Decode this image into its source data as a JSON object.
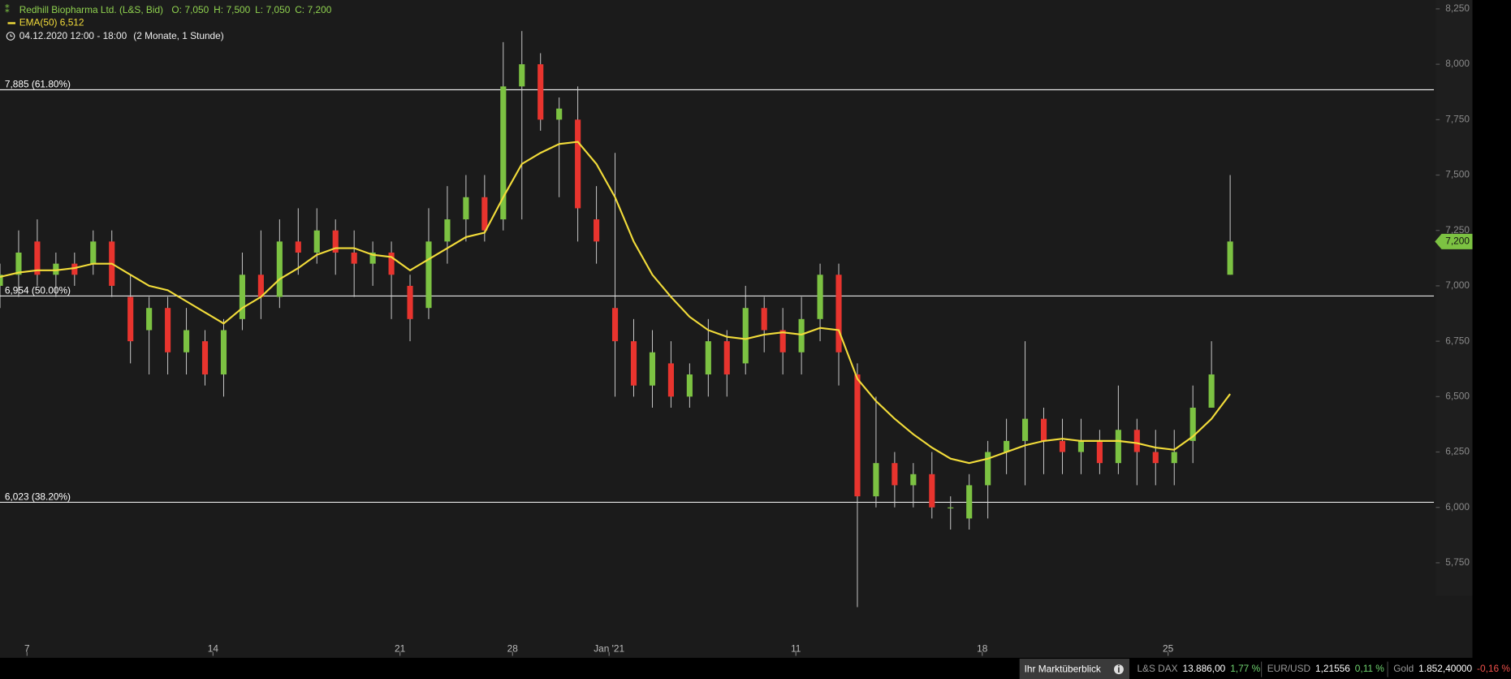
{
  "chart_data": {
    "type": "candlestick",
    "title": "Redhill Biopharma Ltd. (L&S, Bid)",
    "ohlc_legend": [
      {
        "label": "O:",
        "value": "7,050"
      },
      {
        "label": "H:",
        "value": "7,500"
      },
      {
        "label": "L:",
        "value": "7,050"
      },
      {
        "label": "C:",
        "value": "7,200"
      }
    ],
    "time_label": "04.12.2020 12:00 - 18:00",
    "period_label": "(2 Monate, 1 Stunde)",
    "up_color": "#7cc242",
    "down_color": "#e8342e",
    "x": [
      0,
      1,
      2,
      3,
      4,
      5,
      6,
      7,
      8,
      9,
      10,
      11,
      12,
      13,
      14,
      15,
      16,
      17,
      18,
      19,
      20,
      21,
      22,
      23,
      24,
      25,
      26,
      27,
      28,
      29,
      30,
      31,
      32,
      33,
      34,
      35,
      36,
      37,
      38,
      39,
      40,
      41,
      42,
      43,
      44,
      45,
      46,
      47,
      48,
      49,
      50,
      51,
      52,
      53,
      54,
      55,
      56,
      57,
      58,
      59,
      60,
      61,
      62,
      63,
      64,
      65,
      66
    ],
    "open": [
      7.0,
      7.05,
      7.2,
      7.05,
      7.1,
      7.1,
      7.2,
      6.95,
      6.8,
      6.9,
      6.7,
      6.75,
      6.6,
      6.85,
      7.05,
      6.95,
      7.2,
      7.15,
      7.25,
      7.15,
      7.1,
      7.15,
      7.0,
      6.9,
      7.2,
      7.3,
      7.4,
      7.3,
      7.9,
      8.0,
      7.75,
      7.75,
      7.3,
      6.9,
      6.75,
      6.55,
      6.65,
      6.5,
      6.6,
      6.75,
      6.65,
      6.9,
      6.8,
      6.7,
      6.85,
      7.05,
      6.6,
      6.05,
      6.2,
      6.1,
      6.15,
      6.0,
      5.95,
      6.1,
      6.25,
      6.3,
      6.4,
      6.3,
      6.25,
      6.3,
      6.2,
      6.35,
      6.25,
      6.2,
      6.3,
      6.45,
      7.05
    ],
    "high": [
      7.1,
      7.25,
      7.3,
      7.15,
      7.15,
      7.25,
      7.25,
      7.05,
      6.95,
      6.95,
      6.9,
      6.8,
      6.85,
      7.15,
      7.25,
      7.3,
      7.35,
      7.35,
      7.3,
      7.25,
      7.2,
      7.2,
      7.05,
      7.35,
      7.45,
      7.5,
      7.5,
      8.1,
      8.15,
      8.05,
      7.85,
      7.9,
      7.45,
      7.6,
      6.85,
      6.8,
      6.75,
      6.65,
      6.85,
      6.8,
      7.0,
      6.95,
      6.9,
      6.95,
      7.1,
      7.1,
      6.65,
      6.5,
      6.25,
      6.2,
      6.25,
      6.05,
      6.15,
      6.3,
      6.4,
      6.75,
      6.45,
      6.4,
      6.4,
      6.35,
      6.55,
      6.4,
      6.35,
      6.35,
      6.55,
      6.75,
      7.5
    ],
    "low": [
      6.9,
      6.95,
      7.0,
      6.95,
      7.0,
      7.05,
      6.95,
      6.65,
      6.6,
      6.6,
      6.6,
      6.55,
      6.5,
      6.8,
      6.85,
      6.9,
      7.05,
      7.1,
      7.05,
      6.95,
      7.0,
      6.85,
      6.75,
      6.85,
      7.1,
      7.2,
      7.2,
      7.25,
      7.3,
      7.7,
      7.4,
      7.2,
      7.1,
      6.5,
      6.5,
      6.45,
      6.45,
      6.45,
      6.5,
      6.5,
      6.6,
      6.7,
      6.6,
      6.6,
      6.75,
      6.55,
      5.55,
      6.0,
      6.0,
      6.0,
      5.95,
      5.9,
      5.9,
      5.95,
      6.15,
      6.1,
      6.15,
      6.15,
      6.15,
      6.15,
      6.15,
      6.1,
      6.1,
      6.1,
      6.2,
      6.45,
      7.05
    ],
    "close": [
      7.05,
      7.15,
      7.05,
      7.1,
      7.05,
      7.2,
      7.0,
      6.75,
      6.9,
      6.7,
      6.8,
      6.6,
      6.8,
      7.05,
      6.95,
      7.2,
      7.15,
      7.25,
      7.15,
      7.1,
      7.15,
      7.05,
      6.85,
      7.2,
      7.3,
      7.4,
      7.25,
      7.9,
      8.0,
      7.75,
      7.8,
      7.35,
      7.2,
      6.75,
      6.55,
      6.7,
      6.5,
      6.6,
      6.75,
      6.6,
      6.9,
      6.8,
      6.7,
      6.85,
      7.05,
      6.7,
      6.05,
      6.2,
      6.1,
      6.15,
      6.0,
      6.0,
      6.1,
      6.25,
      6.3,
      6.4,
      6.3,
      6.25,
      6.3,
      6.2,
      6.35,
      6.25,
      6.2,
      6.25,
      6.45,
      6.6,
      7.2
    ],
    "ema": {
      "name": "EMA(50)",
      "color": "#f2dc3a",
      "value_label": "6,512",
      "values": [
        7.04,
        7.06,
        7.07,
        7.07,
        7.08,
        7.1,
        7.1,
        7.05,
        7.0,
        6.98,
        6.93,
        6.88,
        6.83,
        6.9,
        6.95,
        7.03,
        7.08,
        7.14,
        7.17,
        7.17,
        7.14,
        7.13,
        7.07,
        7.12,
        7.17,
        7.22,
        7.24,
        7.4,
        7.55,
        7.6,
        7.64,
        7.65,
        7.55,
        7.4,
        7.2,
        7.05,
        6.95,
        6.86,
        6.8,
        6.77,
        6.76,
        6.78,
        6.79,
        6.78,
        6.81,
        6.8,
        6.58,
        6.48,
        6.4,
        6.33,
        6.27,
        6.22,
        6.2,
        6.22,
        6.25,
        6.28,
        6.3,
        6.31,
        6.3,
        6.3,
        6.3,
        6.29,
        6.27,
        6.26,
        6.32,
        6.4,
        6.512
      ]
    },
    "xlim": [
      0,
      79
    ],
    "xticks": [
      {
        "value": 1.45,
        "label": "7"
      },
      {
        "value": 11.43,
        "label": "14"
      },
      {
        "value": 21.46,
        "label": "21"
      },
      {
        "value": 27.5,
        "label": "28"
      },
      {
        "value": 32.68,
        "label": "Jan '21"
      },
      {
        "value": 42.7,
        "label": "11"
      },
      {
        "value": 52.7,
        "label": "18"
      },
      {
        "value": 62.67,
        "label": "25"
      }
    ],
    "ylim": [
      5.33,
      8.29
    ],
    "yticks": [
      {
        "value": 5.75,
        "label": "5,750"
      },
      {
        "value": 6,
        "label": "6,000"
      },
      {
        "value": 6.25,
        "label": "6,250"
      },
      {
        "value": 6.5,
        "label": "6,500"
      },
      {
        "value": 6.75,
        "label": "6,750"
      },
      {
        "value": 7,
        "label": "7,000"
      },
      {
        "value": 7.25,
        "label": "7,250"
      },
      {
        "value": 7.5,
        "label": "7,500"
      },
      {
        "value": 7.75,
        "label": "7,750"
      },
      {
        "value": 8,
        "label": "8,000"
      },
      {
        "value": 8.25,
        "label": "8,250"
      }
    ],
    "hlines": [
      {
        "value": 7.885,
        "label": "7,885 (61.80%)"
      },
      {
        "value": 6.954,
        "label": "6,954 (50.00%)"
      },
      {
        "value": 6.023,
        "label": "6,023 (38.20%)"
      }
    ],
    "last_price": {
      "value": 7.2,
      "label": "7,200"
    }
  },
  "footer": {
    "button": "Ihr Marktüberblick",
    "quotes": [
      {
        "name": "L&S DAX",
        "price": "13.886,00",
        "change": "1,77 %",
        "color": "#6fd36f"
      },
      {
        "name": "EUR/USD",
        "price": "1,21556",
        "change": "0,11 %",
        "color": "#6fd36f"
      },
      {
        "name": "Gold",
        "price": "1.852,40000",
        "change": "-0,16 %",
        "color": "#f0504a"
      }
    ]
  }
}
